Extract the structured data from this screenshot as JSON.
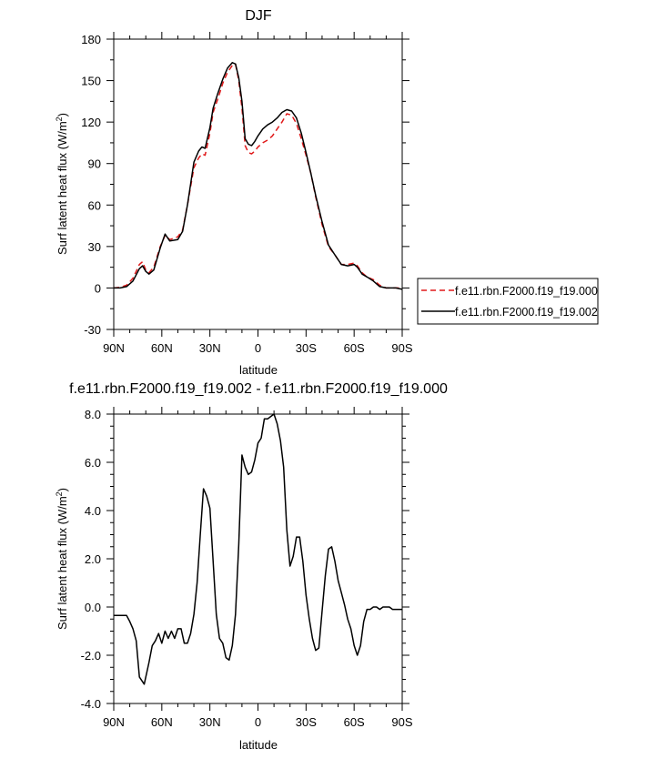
{
  "chart_data": [
    {
      "type": "line",
      "title": "DJF",
      "xlabel": "latitude",
      "ylabel": "Surf latent heat flux (W/m",
      "ylabel_sup": "2",
      "ylabel_close": ")",
      "xlim": [
        90,
        -90
      ],
      "ylim": [
        -30,
        180
      ],
      "x_ticks": [
        90,
        60,
        30,
        0,
        -30,
        -60,
        -90
      ],
      "x_tick_labels": [
        "90N",
        "60N",
        "30N",
        "0",
        "30S",
        "60S",
        "90S"
      ],
      "y_ticks": [
        -30,
        0,
        30,
        60,
        90,
        120,
        150,
        180
      ],
      "y_tick_labels": [
        "-30",
        "0",
        "30",
        "60",
        "90",
        "120",
        "150",
        "180"
      ],
      "grid": false,
      "legend_position": "right, outside plot",
      "series": [
        {
          "name": "f.e11.rbn.F2000.f19_f19.000",
          "color": "#e0191a",
          "dash": "dashed",
          "x": [
            90,
            86,
            82,
            78,
            74,
            72,
            70,
            68,
            65,
            61,
            58,
            55,
            50,
            47,
            44,
            40,
            37,
            35,
            33,
            30,
            28,
            25,
            22,
            19,
            16,
            14,
            12,
            10,
            9,
            8,
            6,
            4,
            2,
            0,
            -3,
            -6,
            -9,
            -12,
            -15,
            -18,
            -21,
            -24,
            -27,
            -30,
            -33,
            -36,
            -40,
            -44,
            -48,
            -52,
            -56,
            -60,
            -62,
            -65,
            -68,
            -72,
            -76,
            -80,
            -83,
            -86,
            -90
          ],
          "y": [
            0,
            0.5,
            2,
            7,
            17,
            19,
            13,
            11,
            15,
            30,
            38,
            35,
            37,
            42,
            60,
            87,
            94,
            97,
            96,
            112,
            127,
            137,
            148,
            156,
            161,
            162,
            150,
            130,
            117,
            103,
            98,
            97,
            99,
            102,
            105,
            107,
            110,
            115,
            120,
            126,
            125,
            119,
            108,
            96,
            83,
            66,
            46,
            30,
            24,
            17,
            17,
            18,
            16,
            11,
            8,
            6,
            2,
            0,
            0,
            0,
            0
          ]
        },
        {
          "name": "f.e11.rbn.F2000.f19_f19.002",
          "color": "#000000",
          "dash": "solid",
          "x": [
            90,
            86,
            82,
            78,
            74,
            72,
            70,
            68,
            65,
            61,
            58,
            55,
            50,
            47,
            44,
            40,
            37,
            35,
            33,
            30,
            28,
            25,
            22,
            19,
            16,
            14,
            12,
            10,
            9,
            8,
            6,
            4,
            2,
            0,
            -3,
            -6,
            -9,
            -12,
            -15,
            -18,
            -21,
            -24,
            -27,
            -30,
            -33,
            -36,
            -40,
            -44,
            -48,
            -52,
            -56,
            -60,
            -62,
            -65,
            -68,
            -72,
            -76,
            -80,
            -83,
            -86,
            -90
          ],
          "y": [
            0,
            0,
            1,
            5,
            14,
            16,
            12,
            10,
            13,
            29,
            39,
            34,
            35,
            41,
            60,
            91,
            99,
            102,
            101,
            116,
            130,
            141,
            151,
            159,
            163,
            162,
            152,
            135,
            122,
            108,
            104,
            103,
            106,
            110,
            115,
            118,
            120,
            123,
            127,
            129,
            128,
            123,
            112,
            98,
            83,
            67,
            48,
            31,
            24,
            17,
            16,
            17,
            15,
            10,
            8,
            5,
            1,
            0,
            0,
            0,
            -1
          ]
        }
      ]
    },
    {
      "type": "line",
      "title": "f.e11.rbn.F2000.f19_f19.002 - f.e11.rbn.F2000.f19_f19.000",
      "xlabel": "latitude",
      "ylabel": "Surf latent heat flux (W/m",
      "ylabel_sup": "2",
      "ylabel_close": ")",
      "xlim": [
        90,
        -90
      ],
      "ylim": [
        -4.0,
        8.0
      ],
      "x_ticks": [
        90,
        60,
        30,
        0,
        -30,
        -60,
        -90
      ],
      "x_tick_labels": [
        "90N",
        "60N",
        "30N",
        "0",
        "30S",
        "60S",
        "90S"
      ],
      "y_ticks": [
        -4,
        -2,
        0,
        2,
        4,
        6,
        8
      ],
      "y_tick_labels": [
        "-4.0",
        "-2.0",
        "0.0",
        "2.0",
        "4.0",
        "6.0",
        "8.0"
      ],
      "grid": false,
      "series": [
        {
          "color": "#000000",
          "dash": "solid",
          "x": [
            90,
            86,
            82,
            80,
            78,
            76,
            74,
            71,
            68,
            66,
            64,
            62,
            60,
            58,
            56,
            54,
            52,
            50,
            48,
            46,
            44,
            42,
            40,
            38,
            36,
            34,
            32,
            30,
            28,
            26,
            24,
            22,
            20,
            18,
            16,
            14,
            12,
            10,
            8,
            6,
            4,
            2,
            0,
            -2,
            -4,
            -6,
            -8,
            -10,
            -12,
            -14,
            -16,
            -18,
            -20,
            -22,
            -24,
            -26,
            -28,
            -30,
            -32,
            -34,
            -36,
            -38,
            -40,
            -42,
            -44,
            -46,
            -48,
            -50,
            -52,
            -54,
            -56,
            -58,
            -60,
            -62,
            -64,
            -66,
            -68,
            -70,
            -72,
            -74,
            -76,
            -78,
            -80,
            -82,
            -84,
            -86,
            -88,
            -90
          ],
          "y": [
            -0.35,
            -0.35,
            -0.35,
            -0.6,
            -0.9,
            -1.4,
            -2.9,
            -3.2,
            -2.3,
            -1.6,
            -1.4,
            -1.1,
            -1.5,
            -1.0,
            -1.3,
            -1.0,
            -1.3,
            -0.9,
            -0.9,
            -1.5,
            -1.5,
            -1.1,
            -0.3,
            1.0,
            3.0,
            4.9,
            4.6,
            4.1,
            1.9,
            -0.3,
            -1.3,
            -1.5,
            -2.1,
            -2.2,
            -1.6,
            -0.3,
            2.6,
            6.3,
            5.8,
            5.5,
            5.6,
            6.1,
            6.8,
            7.0,
            7.8,
            7.8,
            7.9,
            8.0,
            7.6,
            6.9,
            5.8,
            3.2,
            1.7,
            2.1,
            2.9,
            2.9,
            1.9,
            0.5,
            -0.5,
            -1.3,
            -1.8,
            -1.7,
            -0.2,
            1.3,
            2.4,
            2.5,
            1.9,
            1.1,
            0.6,
            0.1,
            -0.5,
            -0.9,
            -1.6,
            -2.0,
            -1.6,
            -0.6,
            -0.1,
            -0.1,
            0.0,
            0.0,
            -0.1,
            0.0,
            0.0,
            0.0,
            -0.1,
            -0.1,
            -0.1,
            -0.1
          ]
        }
      ]
    }
  ]
}
